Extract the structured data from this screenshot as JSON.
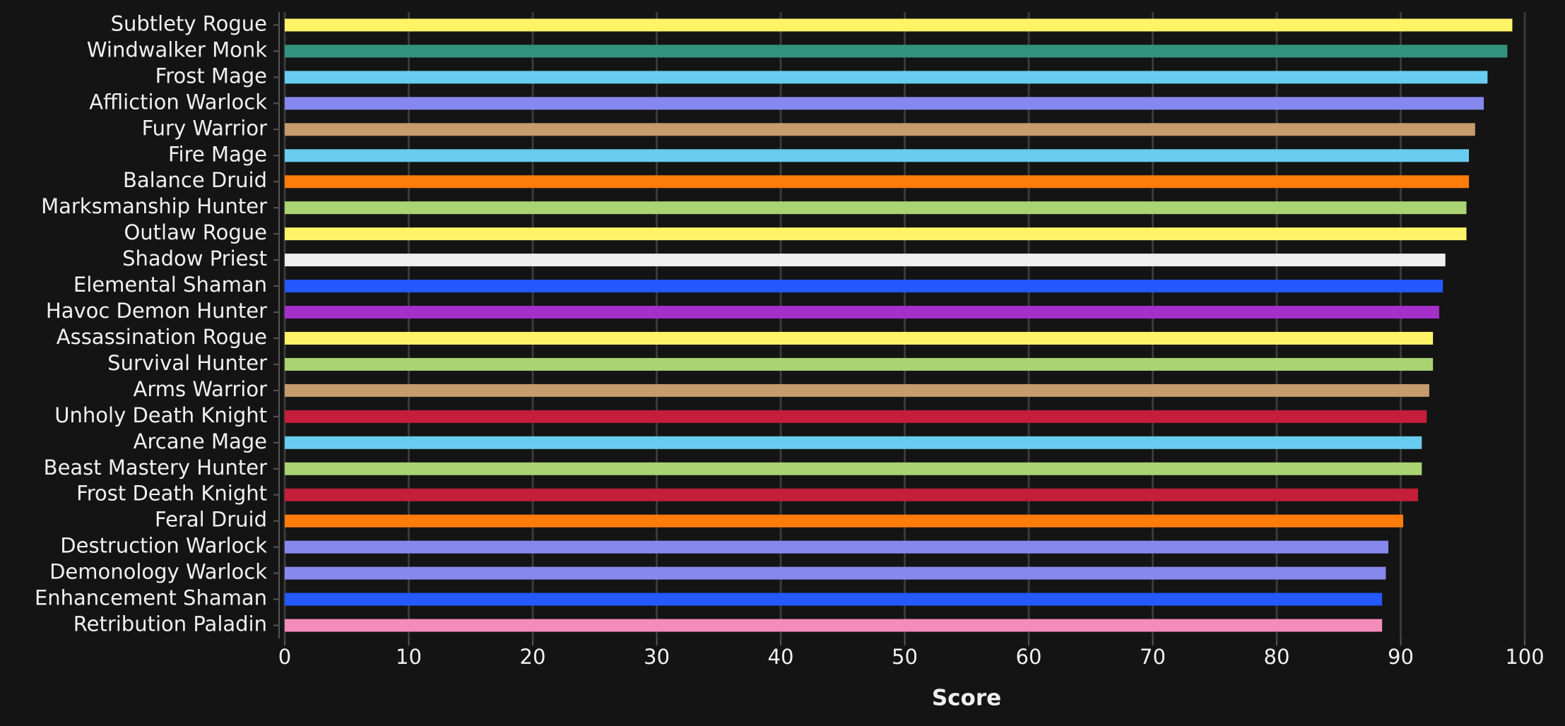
{
  "chart_data": {
    "type": "barh",
    "xlabel": "Score",
    "categories": [
      "Subtlety Rogue",
      "Windwalker Monk",
      "Frost Mage",
      "Affliction Warlock",
      "Fury Warrior",
      "Fire Mage",
      "Balance Druid",
      "Marksmanship Hunter",
      "Outlaw Rogue",
      "Shadow Priest",
      "Elemental Shaman",
      "Havoc Demon Hunter",
      "Assassination Rogue",
      "Survival Hunter",
      "Arms Warrior",
      "Unholy Death Knight",
      "Arcane Mage",
      "Beast Mastery Hunter",
      "Frost Death Knight",
      "Feral Druid",
      "Destruction Warlock",
      "Demonology Warlock",
      "Enhancement Shaman",
      "Retribution Paladin"
    ],
    "values": [
      99.0,
      98.6,
      97.0,
      96.7,
      96.0,
      95.5,
      95.5,
      95.3,
      95.3,
      93.6,
      93.4,
      93.1,
      92.6,
      92.6,
      92.3,
      92.1,
      91.7,
      91.7,
      91.4,
      90.2,
      89.0,
      88.8,
      88.5,
      88.5
    ],
    "colors": [
      "#fff468",
      "#33937f",
      "#68ccef",
      "#8788ee",
      "#c69b6d",
      "#68ccef",
      "#ff7c0a",
      "#aad372",
      "#fff468",
      "#f0f0f0",
      "#2359ff",
      "#a330c9",
      "#fff468",
      "#aad372",
      "#c69b6d",
      "#c41e3a",
      "#68ccef",
      "#aad372",
      "#c41e3a",
      "#ff7c0a",
      "#8788ee",
      "#8788ee",
      "#2359ff",
      "#f48cba"
    ],
    "xlim": [
      0,
      100
    ],
    "xticks": [
      0,
      10,
      20,
      30,
      40,
      50,
      60,
      70,
      80,
      90,
      100
    ],
    "grid": true
  }
}
